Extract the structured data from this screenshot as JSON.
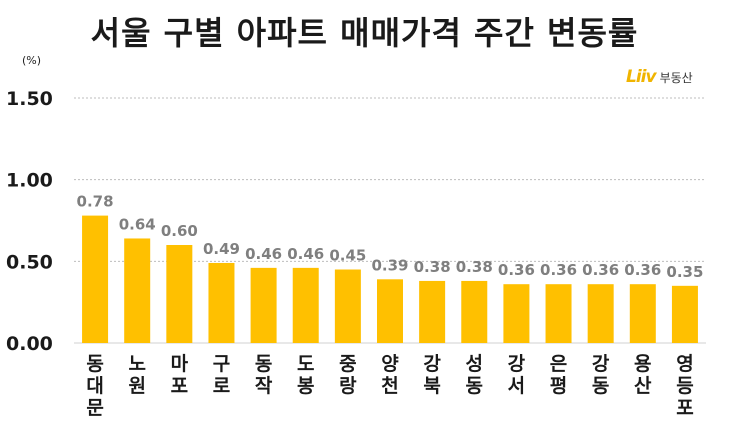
{
  "chart_data": {
    "type": "bar",
    "title": "서울 구별 아파트 매매가격 주간 변동률",
    "unit": "(%)",
    "categories": [
      "동대문",
      "노원",
      "마포",
      "구로",
      "동작",
      "도봉",
      "중랑",
      "양천",
      "강북",
      "성동",
      "강서",
      "은평",
      "강동",
      "용산",
      "영등포"
    ],
    "values": [
      0.78,
      0.64,
      0.6,
      0.49,
      0.46,
      0.46,
      0.45,
      0.39,
      0.38,
      0.38,
      0.36,
      0.36,
      0.36,
      0.36,
      0.35
    ],
    "value_labels": [
      "0.78",
      "0.64",
      "0.60",
      "0.49",
      "0.46",
      "0.46",
      "0.45",
      "0.39",
      "0.38",
      "0.38",
      "0.36",
      "0.36",
      "0.36",
      "0.36",
      "0.35"
    ],
    "yticks": [
      "0.00",
      "0.50",
      "1.00",
      "1.50"
    ],
    "ylim": [
      0,
      1.5
    ],
    "grid": true,
    "bar_color": "#FFC000",
    "label_color": "#7F7F7F"
  },
  "branding": {
    "logo_mark": "Liiv",
    "logo_text": "부동산",
    "logo_color": "#F0B400"
  }
}
